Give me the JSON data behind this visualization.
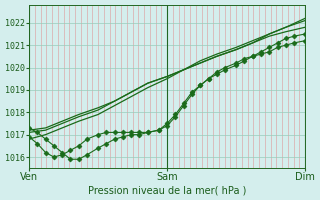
{
  "title": "Pression niveau de la mer( hPa )",
  "bg_color": "#d4eeed",
  "grid_color_minor": "#dd9999",
  "grid_color_major": "#99ccbb",
  "line_color": "#1a6b1a",
  "ylim": [
    1015.5,
    1022.8
  ],
  "yticks": [
    1016,
    1017,
    1018,
    1019,
    1020,
    1021,
    1022
  ],
  "xtick_labels": [
    "Ven",
    "Sam",
    "Dim"
  ],
  "xtick_pos": [
    0,
    0.5,
    1.0
  ],
  "n_minor_v": 48,
  "series_plain": [
    {
      "x": [
        0.0,
        0.06,
        0.12,
        0.18,
        0.25,
        0.31,
        0.37,
        0.43,
        0.5,
        0.56,
        0.62,
        0.68,
        0.75,
        0.81,
        0.87,
        0.93,
        1.0
      ],
      "y": [
        1017.2,
        1017.3,
        1017.6,
        1017.9,
        1018.2,
        1018.5,
        1018.9,
        1019.3,
        1019.6,
        1019.9,
        1020.2,
        1020.5,
        1020.8,
        1021.1,
        1021.4,
        1021.6,
        1021.8
      ]
    },
    {
      "x": [
        0.0,
        0.06,
        0.12,
        0.18,
        0.25,
        0.31,
        0.37,
        0.43,
        0.5,
        0.56,
        0.62,
        0.68,
        0.75,
        0.81,
        0.87,
        0.93,
        1.0
      ],
      "y": [
        1017.1,
        1017.2,
        1017.5,
        1017.8,
        1018.1,
        1018.5,
        1018.9,
        1019.3,
        1019.6,
        1019.9,
        1020.2,
        1020.5,
        1020.8,
        1021.1,
        1021.5,
        1021.8,
        1022.1
      ]
    },
    {
      "x": [
        0.0,
        0.06,
        0.12,
        0.18,
        0.25,
        0.31,
        0.37,
        0.43,
        0.5,
        0.56,
        0.62,
        0.68,
        0.75,
        0.81,
        0.87,
        0.93,
        1.0
      ],
      "y": [
        1016.8,
        1017.0,
        1017.3,
        1017.6,
        1017.9,
        1018.3,
        1018.7,
        1019.1,
        1019.5,
        1019.9,
        1020.3,
        1020.6,
        1020.9,
        1021.2,
        1021.5,
        1021.8,
        1022.2
      ]
    }
  ],
  "series_marked1": {
    "x": [
      0.0,
      0.03,
      0.06,
      0.09,
      0.12,
      0.15,
      0.18,
      0.21,
      0.25,
      0.28,
      0.31,
      0.34,
      0.37,
      0.4,
      0.43,
      0.47,
      0.5,
      0.53,
      0.56,
      0.59,
      0.62,
      0.65,
      0.68,
      0.71,
      0.75,
      0.78,
      0.81,
      0.84,
      0.87,
      0.9,
      0.93,
      0.96,
      1.0
    ],
    "y": [
      1016.9,
      1016.6,
      1016.2,
      1016.0,
      1016.1,
      1016.3,
      1016.5,
      1016.8,
      1017.0,
      1017.1,
      1017.1,
      1017.1,
      1017.1,
      1017.1,
      1017.1,
      1017.2,
      1017.4,
      1017.8,
      1018.3,
      1018.8,
      1019.2,
      1019.5,
      1019.8,
      1020.0,
      1020.2,
      1020.4,
      1020.5,
      1020.6,
      1020.7,
      1020.9,
      1021.0,
      1021.1,
      1021.2
    ]
  },
  "series_marked2": {
    "x": [
      0.0,
      0.03,
      0.06,
      0.09,
      0.12,
      0.15,
      0.18,
      0.21,
      0.25,
      0.28,
      0.31,
      0.34,
      0.37,
      0.4,
      0.43,
      0.47,
      0.5,
      0.53,
      0.56,
      0.59,
      0.62,
      0.65,
      0.68,
      0.71,
      0.75,
      0.78,
      0.81,
      0.84,
      0.87,
      0.9,
      0.93,
      0.96,
      1.0
    ],
    "y": [
      1017.3,
      1017.1,
      1016.8,
      1016.5,
      1016.2,
      1015.9,
      1015.9,
      1016.1,
      1016.4,
      1016.6,
      1016.8,
      1016.9,
      1017.0,
      1017.0,
      1017.1,
      1017.2,
      1017.5,
      1017.9,
      1018.4,
      1018.9,
      1019.2,
      1019.5,
      1019.7,
      1019.9,
      1020.1,
      1020.3,
      1020.5,
      1020.7,
      1020.9,
      1021.1,
      1021.3,
      1021.4,
      1021.5
    ]
  },
  "marker": "D",
  "marker_size": 2.5
}
